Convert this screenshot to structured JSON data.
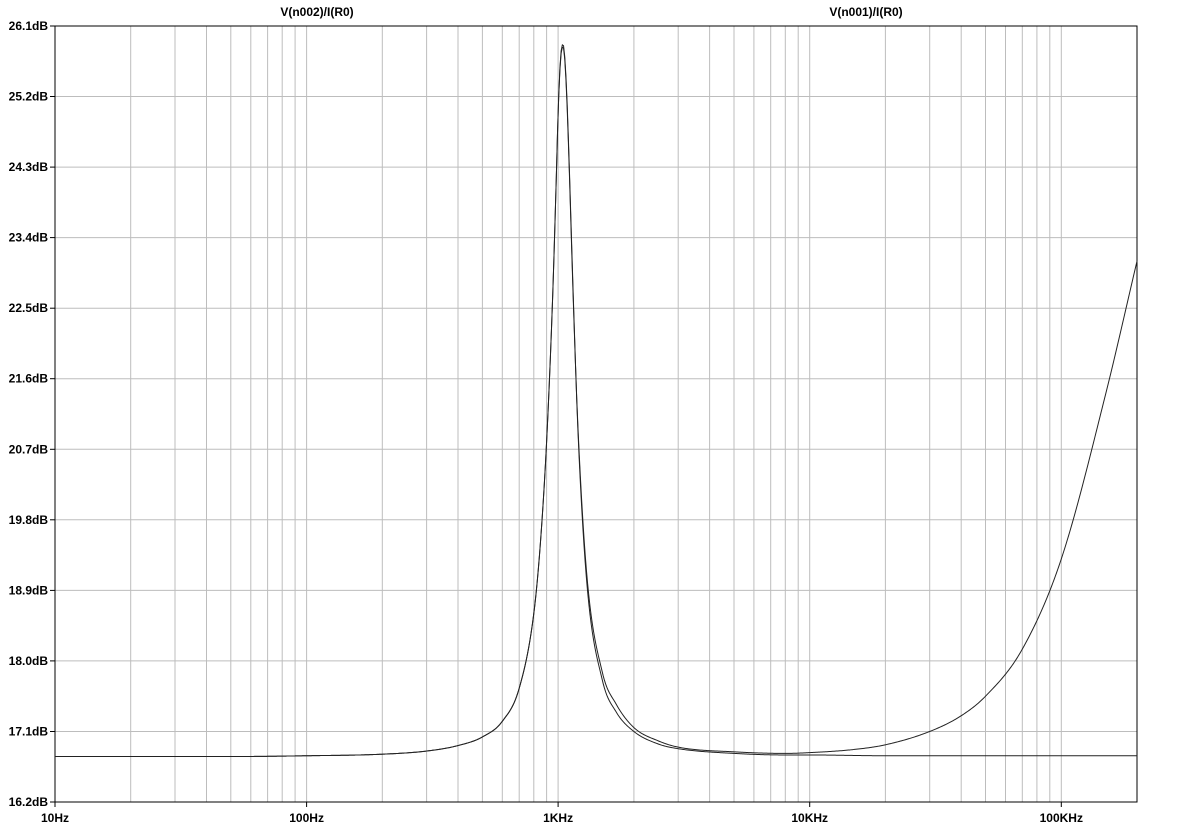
{
  "chart_data": {
    "type": "line",
    "title": "",
    "xlabel": "",
    "ylabel": "",
    "x_scale": "log",
    "xlim": [
      10,
      200000
    ],
    "ylim": [
      16.2,
      26.1
    ],
    "grid": true,
    "legend": "top",
    "x_ticks": [
      {
        "value": 10,
        "label": "10Hz"
      },
      {
        "value": 100,
        "label": "100Hz"
      },
      {
        "value": 1000,
        "label": "1KHz"
      },
      {
        "value": 10000,
        "label": "10KHz"
      },
      {
        "value": 100000,
        "label": "100KHz"
      }
    ],
    "y_ticks": [
      {
        "value": 26.1,
        "label": "26.1dB"
      },
      {
        "value": 25.2,
        "label": "25.2dB"
      },
      {
        "value": 24.3,
        "label": "24.3dB"
      },
      {
        "value": 23.4,
        "label": "23.4dB"
      },
      {
        "value": 22.5,
        "label": "22.5dB"
      },
      {
        "value": 21.6,
        "label": "21.6dB"
      },
      {
        "value": 20.7,
        "label": "20.7dB"
      },
      {
        "value": 19.8,
        "label": "19.8dB"
      },
      {
        "value": 18.9,
        "label": "18.9dB"
      },
      {
        "value": 18.0,
        "label": "18.0dB"
      },
      {
        "value": 17.1,
        "label": "17.1dB"
      },
      {
        "value": 16.2,
        "label": "16.2dB"
      }
    ],
    "series": [
      {
        "name": "V(n002)/I(R0)",
        "color": "#222222",
        "x": [
          10,
          50,
          100,
          200,
          300,
          400,
          500,
          600,
          700,
          800,
          850,
          900,
          950,
          980,
          1000,
          1020,
          1040,
          1050,
          1060,
          1080,
          1100,
          1150,
          1200,
          1300,
          1500,
          1700,
          2000,
          2500,
          3000,
          5000,
          8000,
          10000,
          20000,
          30000,
          50000,
          70000,
          100000,
          150000,
          200000
        ],
        "y": [
          16.78,
          16.78,
          16.79,
          16.81,
          16.85,
          16.92,
          17.03,
          17.23,
          17.65,
          18.6,
          19.5,
          20.8,
          22.6,
          24.0,
          25.0,
          25.65,
          25.86,
          25.85,
          25.75,
          25.3,
          24.6,
          22.6,
          20.9,
          19.0,
          17.75,
          17.35,
          17.1,
          16.94,
          16.88,
          16.82,
          16.8,
          16.8,
          16.79,
          16.79,
          16.79,
          16.79,
          16.79,
          16.79,
          16.79
        ]
      },
      {
        "name": "V(n001)/I(R0)",
        "color": "#222222",
        "x": [
          10,
          50,
          100,
          200,
          300,
          400,
          500,
          600,
          700,
          800,
          850,
          900,
          950,
          980,
          1000,
          1020,
          1040,
          1050,
          1060,
          1080,
          1100,
          1150,
          1200,
          1300,
          1500,
          1700,
          2000,
          2500,
          3000,
          5000,
          8000,
          10000,
          15000,
          20000,
          30000,
          40000,
          50000,
          70000,
          100000,
          150000,
          200000
        ],
        "y": [
          16.78,
          16.78,
          16.79,
          16.81,
          16.85,
          16.92,
          17.03,
          17.23,
          17.65,
          18.6,
          19.5,
          20.8,
          22.6,
          24.0,
          25.0,
          25.62,
          25.83,
          25.82,
          25.72,
          25.25,
          24.55,
          22.55,
          20.95,
          19.1,
          17.85,
          17.45,
          17.15,
          16.98,
          16.9,
          16.84,
          16.82,
          16.83,
          16.87,
          16.93,
          17.1,
          17.3,
          17.55,
          18.15,
          19.3,
          21.4,
          23.1
        ]
      }
    ]
  }
}
